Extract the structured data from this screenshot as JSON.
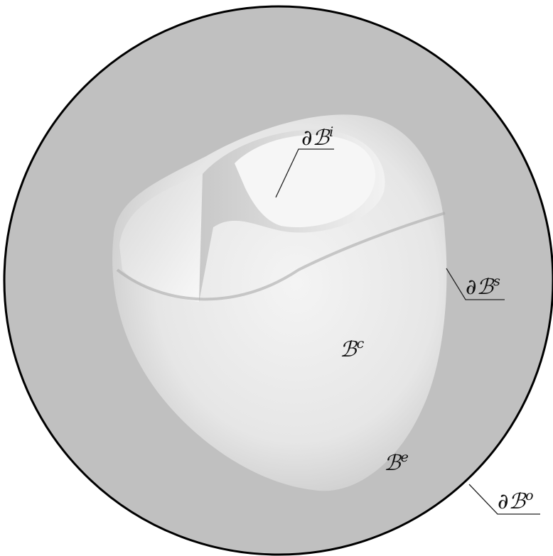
{
  "labels": [
    {
      "base": "∂ℬ",
      "sup": "i"
    },
    {
      "base": "∂ℬ",
      "sup": "s"
    },
    {
      "base": "ℬ",
      "sup": "c"
    },
    {
      "base": "ℬ",
      "sup": "e"
    },
    {
      "base": "∂ℬ",
      "sup": "o"
    }
  ]
}
